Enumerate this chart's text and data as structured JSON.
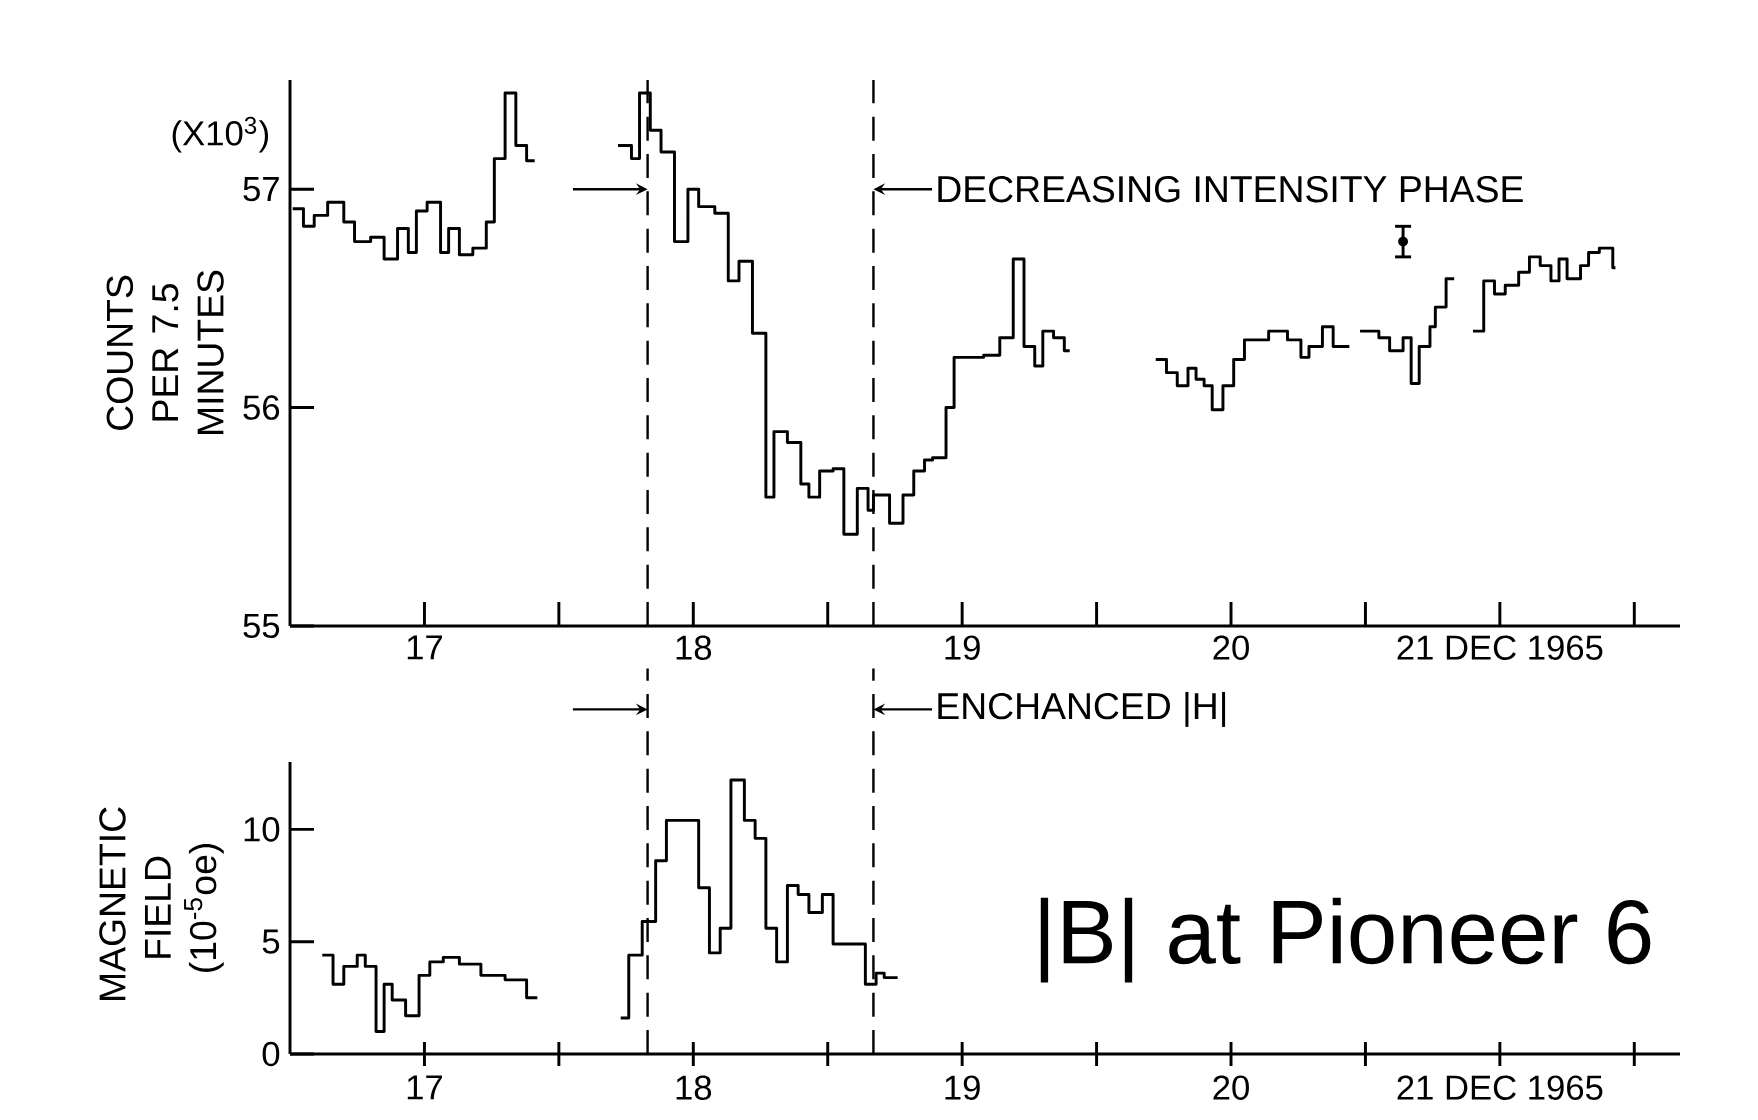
{
  "chart_data": [
    {
      "type": "step",
      "ylabel": "COUNTS PER 7.5 MINUTES",
      "xlim": [
        16.5,
        21.67
      ],
      "ylim": [
        55,
        57.5
      ],
      "xticks": [
        {
          "value": 17,
          "label": "17"
        },
        {
          "value": 17.5,
          "label": null
        },
        {
          "value": 18,
          "label": "18"
        },
        {
          "value": 18.5,
          "label": null
        },
        {
          "value": 19,
          "label": "19"
        },
        {
          "value": 19.5,
          "label": null
        },
        {
          "value": 20,
          "label": "20"
        },
        {
          "value": 20.5,
          "label": null
        },
        {
          "value": 21,
          "label": "21 DEC 1965"
        },
        {
          "value": 21.5,
          "label": null
        }
      ],
      "yticks": [
        55,
        56,
        57
      ],
      "series": [
        {
          "color": "#000000",
          "x": [
            16.51,
            16.55,
            16.59,
            16.64,
            16.7,
            16.74,
            16.8,
            16.85,
            16.9,
            16.94,
            16.97,
            17.01,
            17.06,
            17.09,
            17.13,
            17.18,
            17.23,
            17.26,
            17.3,
            17.34,
            17.38,
            17.41,
            17.5,
            17.72,
            17.77,
            17.8,
            17.84,
            17.88,
            17.93,
            17.98,
            18.02,
            18.08,
            18.13,
            18.17,
            18.22,
            18.27,
            18.3,
            18.35,
            18.4,
            18.43,
            18.47,
            18.52,
            18.56,
            18.61,
            18.65,
            18.67,
            18.73,
            18.78,
            18.82,
            18.86,
            18.89,
            18.94,
            18.97,
            19.08,
            19.14,
            19.19,
            19.23,
            19.27,
            19.3,
            19.34,
            19.38,
            19.4,
            19.55,
            19.72,
            19.76,
            19.8,
            19.84,
            19.87,
            19.9,
            19.93,
            19.97,
            20.01,
            20.05,
            20.14,
            20.21,
            20.26,
            20.29,
            20.34,
            20.38,
            20.44,
            20.46,
            20.48,
            20.55,
            20.59,
            20.64,
            20.67,
            20.7,
            20.74,
            20.76,
            20.8,
            20.83,
            20.86,
            20.9,
            20.94,
            20.98,
            21.02,
            21.07,
            21.11,
            21.15,
            21.19,
            21.22,
            21.25,
            21.3,
            21.33,
            21.37,
            21.42,
            21.43
          ],
          "values": [
            56.91,
            56.83,
            56.88,
            56.94,
            56.85,
            56.76,
            56.78,
            56.68,
            56.82,
            56.71,
            56.9,
            56.94,
            56.71,
            56.82,
            56.7,
            56.73,
            56.85,
            57.14,
            57.44,
            57.2,
            57.13,
            57.13,
            null,
            57.2,
            57.14,
            57.44,
            57.27,
            57.17,
            56.76,
            57.0,
            56.92,
            56.89,
            56.58,
            56.67,
            56.34,
            55.59,
            55.89,
            55.84,
            55.65,
            55.59,
            55.71,
            55.72,
            55.42,
            55.63,
            55.53,
            55.6,
            55.47,
            55.6,
            55.71,
            55.76,
            55.77,
            56.0,
            56.23,
            56.24,
            56.32,
            56.68,
            56.28,
            56.19,
            56.35,
            56.32,
            56.26,
            56.26,
            null,
            56.22,
            56.16,
            56.1,
            56.18,
            56.13,
            56.1,
            55.99,
            56.1,
            56.22,
            56.31,
            56.35,
            56.31,
            56.23,
            56.28,
            56.37,
            56.28,
            56.28,
            null,
            56.35,
            56.32,
            56.26,
            56.32,
            56.11,
            56.28,
            56.37,
            56.46,
            56.59,
            56.59,
            null,
            56.35,
            56.58,
            56.52,
            56.56,
            56.62,
            56.69,
            56.65,
            56.58,
            56.68,
            56.59,
            56.65,
            56.71,
            56.73,
            56.64,
            56.64
          ]
        },
        {
          "type": "scatter",
          "marker": "circle",
          "color": "#000000",
          "x": [
            20.64
          ],
          "values": [
            56.76
          ],
          "errors": [
            0.07
          ]
        }
      ],
      "ref_lines": [
        {
          "axis": "x",
          "value": 17.83,
          "line_style": "dashed"
        },
        {
          "axis": "x",
          "value": 18.67,
          "label": "DECREASING INTENSITY PHASE",
          "line_style": "dashed"
        }
      ],
      "annotations": [
        "(X10$^{3}$)"
      ]
    },
    {
      "type": "step",
      "ylabel": "MAGNETIC FIELD (10$^{-5}$oe)",
      "xlim": [
        16.5,
        21.67
      ],
      "ylim": [
        0,
        13
      ],
      "xticks": [
        {
          "value": 17,
          "label": "17"
        },
        {
          "value": 17.5,
          "label": null
        },
        {
          "value": 18,
          "label": "18"
        },
        {
          "value": 18.5,
          "label": null
        },
        {
          "value": 19,
          "label": "19"
        },
        {
          "value": 19.5,
          "label": null
        },
        {
          "value": 20,
          "label": "20"
        },
        {
          "value": 20.5,
          "label": null
        },
        {
          "value": 21,
          "label": "21 DEC 1965"
        },
        {
          "value": 21.5,
          "label": null
        }
      ],
      "yticks": [
        0,
        5,
        10
      ],
      "series": [
        {
          "color": "#000000",
          "x": [
            16.62,
            16.66,
            16.7,
            16.75,
            16.78,
            16.82,
            16.85,
            16.88,
            16.93,
            16.98,
            17.02,
            17.07,
            17.13,
            17.21,
            17.3,
            17.38,
            17.42,
            17.55,
            17.73,
            17.76,
            17.81,
            17.86,
            17.9,
            18.02,
            18.06,
            18.1,
            18.14,
            18.19,
            18.23,
            18.27,
            18.31,
            18.35,
            18.39,
            18.43,
            18.48,
            18.52,
            18.64,
            18.68,
            18.71,
            18.76
          ],
          "values": [
            4.4,
            3.1,
            3.9,
            4.4,
            3.9,
            1.0,
            3.1,
            2.4,
            1.7,
            3.5,
            4.1,
            4.3,
            4.0,
            3.5,
            3.3,
            2.5,
            2.5,
            null,
            1.6,
            4.4,
            5.9,
            8.6,
            10.4,
            7.4,
            4.5,
            5.6,
            12.2,
            10.4,
            9.6,
            5.6,
            4.1,
            7.5,
            7.1,
            6.3,
            7.1,
            4.9,
            3.1,
            3.6,
            3.4,
            3.4
          ]
        }
      ],
      "ref_lines": [
        {
          "axis": "x",
          "value": 17.83,
          "line_style": "dashed"
        },
        {
          "axis": "x",
          "value": 18.67,
          "label": "ENCHANCED |H|",
          "line_style": "dashed"
        }
      ],
      "annotations": [
        "|B| at Pioneer 6"
      ]
    }
  ]
}
